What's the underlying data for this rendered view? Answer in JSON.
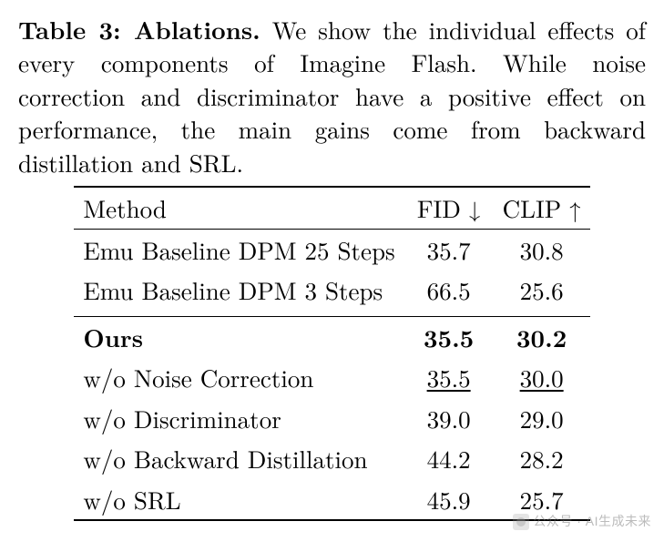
{
  "caption": {
    "lead": "Table 3: Ablations.",
    "text": " We show the individual effects of every components of Imagine Flash. While noise correction and discriminator have a positive effect on performance, the main gains come from backward distillation and SRL."
  },
  "table": {
    "headers": {
      "method": "Method",
      "fid": "FID",
      "fid_arrow": "↓",
      "clip": "CLIP",
      "clip_arrow": "↑"
    },
    "group1": [
      {
        "method": "Emu Baseline DPM 25 Steps",
        "fid": "35.7",
        "clip": "30.8"
      },
      {
        "method": "Emu Baseline DPM 3 Steps",
        "fid": "66.5",
        "clip": "25.6"
      }
    ],
    "group2": [
      {
        "method": "Ours",
        "fid": "35.5",
        "clip": "30.2",
        "bold": true
      },
      {
        "method": "w/o Noise Correction",
        "fid": "35.5",
        "clip": "30.0",
        "underline": true
      },
      {
        "method": "w/o Discriminator",
        "fid": "39.0",
        "clip": "29.0"
      },
      {
        "method": "w/o Backward Distillation",
        "fid": "44.2",
        "clip": "28.2"
      },
      {
        "method": "w/o SRL",
        "fid": "45.9",
        "clip": "25.7"
      }
    ]
  },
  "watermark": "公众号 · AI生成未来"
}
